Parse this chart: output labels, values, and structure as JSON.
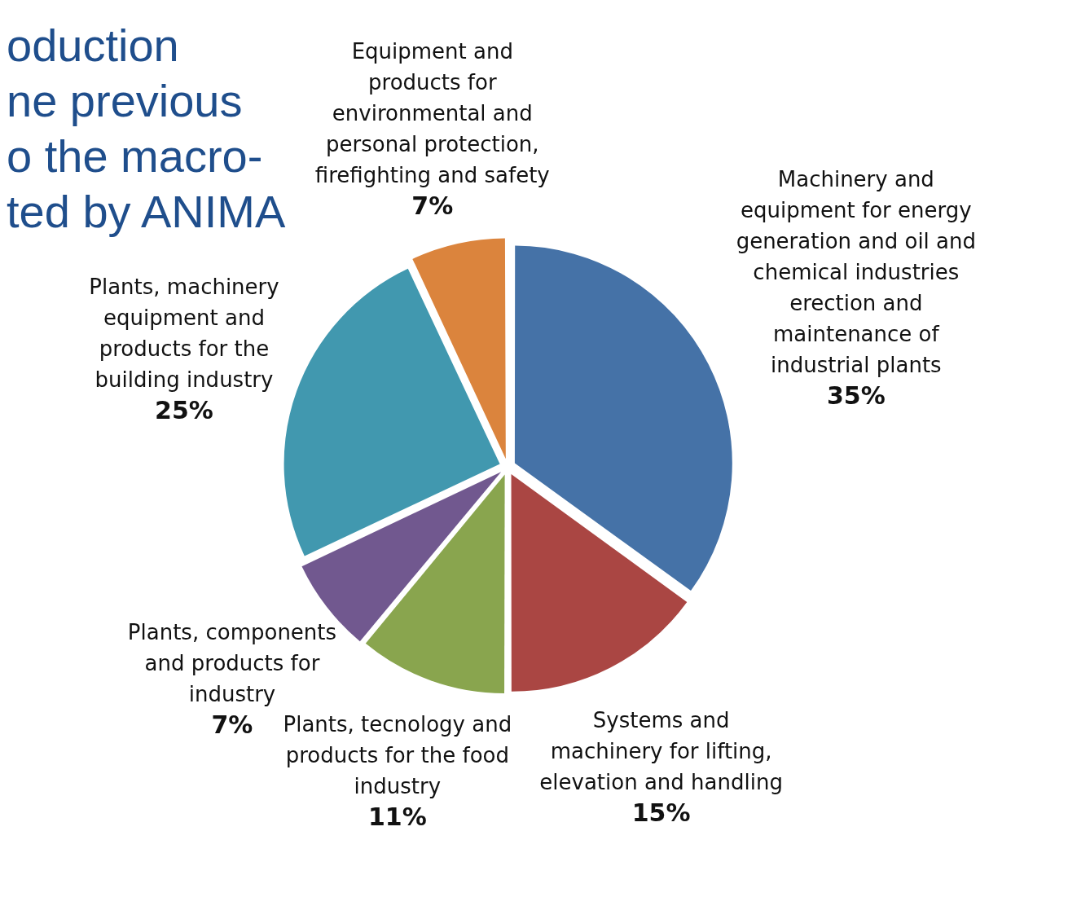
{
  "chart_data": {
    "type": "pie",
    "categories": [
      "Machinery and equipment for energy generation and oil and chemical industries erection and maintenance of industrial plants",
      "Systems and machinery for lifting, elevation and handling",
      "Plants, tecnology and products for the food industry",
      "Plants, components and products for industry",
      "Plants, machinery equipment and products for the building industry",
      "Equipment and products for environmental and personal protection, firefighting and safety"
    ],
    "values": [
      35,
      15,
      11,
      7,
      25,
      7
    ],
    "colors": [
      "#4572a7",
      "#aa4643",
      "#89a54e",
      "#71588f",
      "#4198af",
      "#db843d"
    ],
    "value_labels": [
      "35%",
      "15%",
      "11%",
      "7%",
      "25%",
      "7%"
    ],
    "legend": false,
    "annotations": [
      "oduction",
      "ne previous",
      "o the macro-",
      "ted by ANIMA"
    ]
  }
}
